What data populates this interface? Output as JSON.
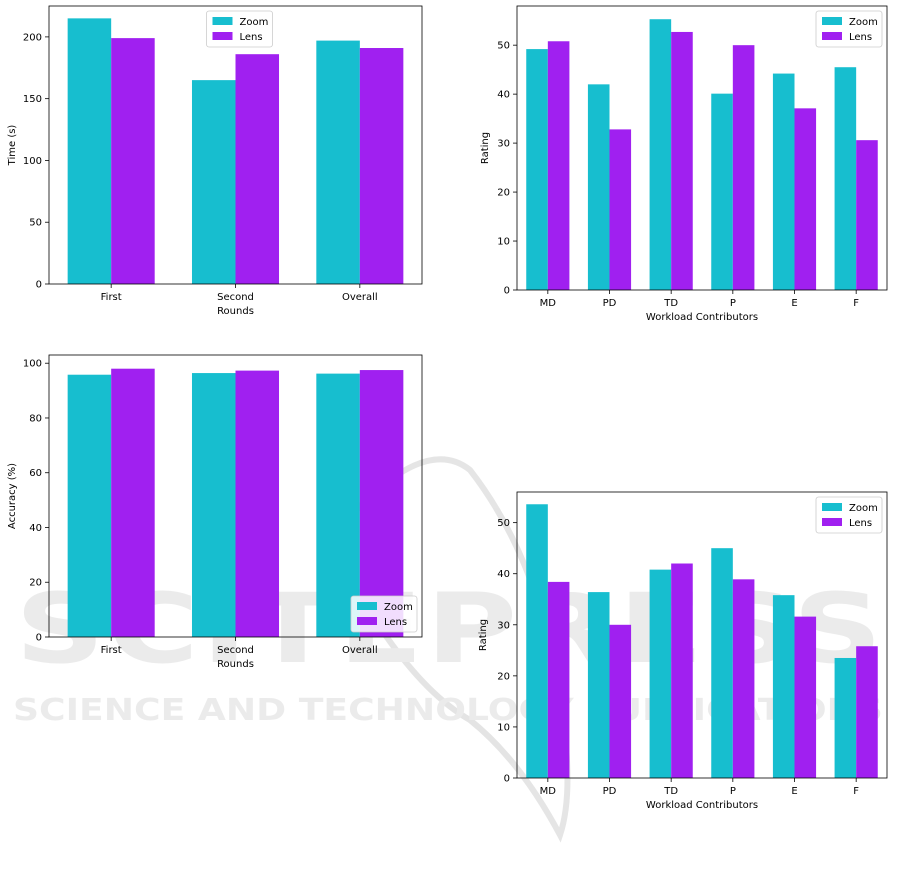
{
  "colors": {
    "zoom": "#17becf",
    "lens": "#a020f0",
    "watermark": "#d9d9d9"
  },
  "watermark": {
    "main": "SCITEPRESS",
    "sub": "SCIENCE AND TECHNOLOGY PUBLICATIONS"
  },
  "chart_data": [
    {
      "type": "bar",
      "categories": [
        "First",
        "Second",
        "Overall"
      ],
      "xlabel": "Rounds",
      "ylabel": "Time (s)",
      "ylim": [
        0,
        225
      ],
      "yticks": [
        0,
        50,
        100,
        150,
        200
      ],
      "legend": "top-center",
      "series": [
        {
          "name": "Zoom",
          "values": [
            215,
            165,
            197
          ]
        },
        {
          "name": "Lens",
          "values": [
            199,
            186,
            191
          ]
        }
      ]
    },
    {
      "type": "bar",
      "categories": [
        "MD",
        "PD",
        "TD",
        "P",
        "E",
        "F"
      ],
      "xlabel": "Workload Contributors",
      "ylabel": "Rating",
      "ylim": [
        0,
        58
      ],
      "yticks": [
        0,
        10,
        20,
        30,
        40,
        50
      ],
      "legend": "top-right",
      "series": [
        {
          "name": "Zoom",
          "values": [
            49.2,
            42.0,
            55.3,
            40.1,
            44.2,
            45.5
          ]
        },
        {
          "name": "Lens",
          "values": [
            50.8,
            32.8,
            52.7,
            50.0,
            37.1,
            30.6
          ]
        }
      ]
    },
    {
      "type": "bar",
      "categories": [
        "First",
        "Second",
        "Overall"
      ],
      "xlabel": "Rounds",
      "ylabel": "Accuracy (%)",
      "ylim": [
        0,
        103
      ],
      "yticks": [
        0,
        20,
        40,
        60,
        80,
        100
      ],
      "legend": "bottom-right",
      "series": [
        {
          "name": "Zoom",
          "values": [
            95.8,
            96.4,
            96.2
          ]
        },
        {
          "name": "Lens",
          "values": [
            98.0,
            97.3,
            97.5
          ]
        }
      ]
    },
    {
      "type": "bar",
      "categories": [
        "MD",
        "PD",
        "TD",
        "P",
        "E",
        "F"
      ],
      "xlabel": "Workload Contributors",
      "ylabel": "Rating",
      "ylim": [
        0,
        56
      ],
      "yticks": [
        0,
        10,
        20,
        30,
        40,
        50
      ],
      "legend": "top-right",
      "series": [
        {
          "name": "Zoom",
          "values": [
            53.6,
            36.4,
            40.8,
            45.0,
            35.8,
            23.5
          ]
        },
        {
          "name": "Lens",
          "values": [
            38.4,
            30.0,
            42.0,
            38.9,
            31.6,
            25.8
          ]
        }
      ]
    }
  ]
}
